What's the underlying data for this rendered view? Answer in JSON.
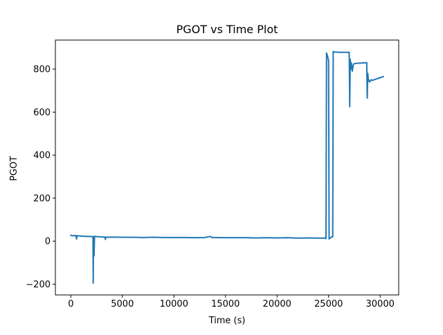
{
  "chart_data": {
    "type": "line",
    "title": "PGOT vs Time Plot",
    "xlabel": "Time (s)",
    "ylabel": "PGOT",
    "xlim": [
      -1500,
      31800
    ],
    "ylim": [
      -250,
      935
    ],
    "xticks": [
      0,
      5000,
      10000,
      15000,
      20000,
      25000,
      30000
    ],
    "xtick_labels": [
      "0",
      "5000",
      "10000",
      "15000",
      "20000",
      "25000",
      "30000"
    ],
    "yticks": [
      -200,
      0,
      200,
      400,
      600,
      800
    ],
    "ytick_labels": [
      "−200",
      "0",
      "200",
      "400",
      "600",
      "800"
    ],
    "grid": false,
    "series": [
      {
        "color": "#1f77b4",
        "x": [
          0,
          200,
          400,
          500,
          550,
          600,
          900,
          1200,
          1500,
          1800,
          2000,
          2100,
          2150,
          2170,
          2200,
          2250,
          2300,
          2350,
          2400,
          2500,
          2800,
          3000,
          3200,
          3300,
          3350,
          3400,
          3600,
          4000,
          5000,
          6000,
          7000,
          8000,
          9000,
          10000,
          11000,
          12000,
          13000,
          13500,
          13700,
          14000,
          15000,
          16000,
          17000,
          18000,
          19000,
          20000,
          21000,
          22000,
          23000,
          24000,
          24500,
          24700,
          24750,
          24800,
          24900,
          25000,
          25050,
          25100,
          25150,
          25200,
          25300,
          25400,
          25450,
          25500,
          26000,
          26500,
          27000,
          27050,
          27100,
          27150,
          27200,
          27300,
          27400,
          27500,
          28000,
          28700,
          28750,
          28800,
          28850,
          28900,
          29000,
          29100,
          29300,
          29500,
          30000,
          30300
        ],
        "y": [
          27,
          25,
          26,
          26,
          10,
          25,
          24,
          23,
          22,
          22,
          21,
          20,
          22,
          -195,
          18,
          -68,
          23,
          22,
          22,
          21,
          20,
          20,
          19,
          19,
          8,
          19,
          18,
          19,
          18,
          18,
          17,
          18,
          17,
          17,
          17,
          16,
          17,
          22,
          17,
          17,
          16,
          16,
          16,
          15,
          16,
          15,
          16,
          14,
          15,
          14,
          14,
          14,
          12,
          875,
          860,
          840,
          10,
          12,
          14,
          16,
          20,
          20,
          882,
          880,
          878,
          878,
          878,
          625,
          845,
          800,
          830,
          790,
          820,
          826,
          828,
          830,
          665,
          780,
          755,
          745,
          740,
          750,
          748,
          752,
          760,
          765
        ]
      }
    ]
  }
}
